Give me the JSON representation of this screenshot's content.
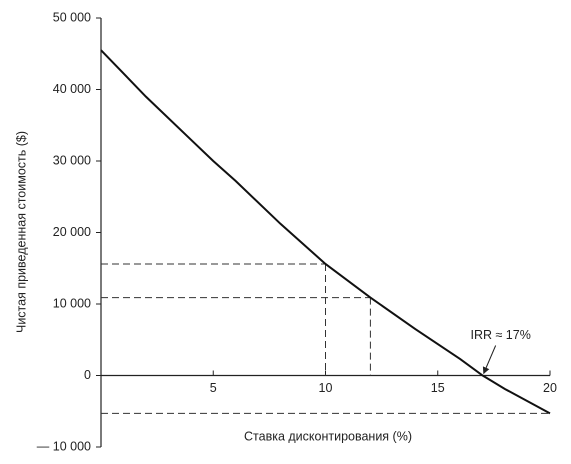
{
  "chart_data": {
    "type": "line",
    "x_label": "Ставка дисконтирования (%)",
    "y_label": "Чистая приведенная стоимость ($)",
    "x": [
      0,
      2,
      4,
      5,
      6,
      8,
      10,
      12,
      14,
      16,
      17,
      18,
      20
    ],
    "series": [
      {
        "color": "#111111",
        "values": [
          45500,
          39000,
          33000,
          30000,
          27200,
          21200,
          15600,
          10900,
          6500,
          2300,
          0,
          -1900,
          -5300
        ]
      }
    ],
    "xlim": [
      0,
      20
    ],
    "xticks": [
      5,
      10,
      15,
      20
    ],
    "ylim": [
      -10000,
      50000
    ],
    "yticks": [
      {
        "value": -10000,
        "label": "— 10 000"
      },
      0,
      {
        "value": 10000,
        "label": "10 000"
      },
      {
        "value": 20000,
        "label": "20 000"
      },
      {
        "value": 30000,
        "label": "30 000"
      },
      {
        "value": 40000,
        "label": "40 000"
      },
      {
        "value": 50000,
        "label": "50 000"
      }
    ],
    "guides": [
      {
        "x": 10,
        "y": 15600
      },
      {
        "x": 12,
        "y": 10900
      },
      {
        "x": 20,
        "y": -5300
      }
    ],
    "annotation": {
      "text": "IRR ≈ 17%",
      "x": 17,
      "y": 0
    }
  }
}
